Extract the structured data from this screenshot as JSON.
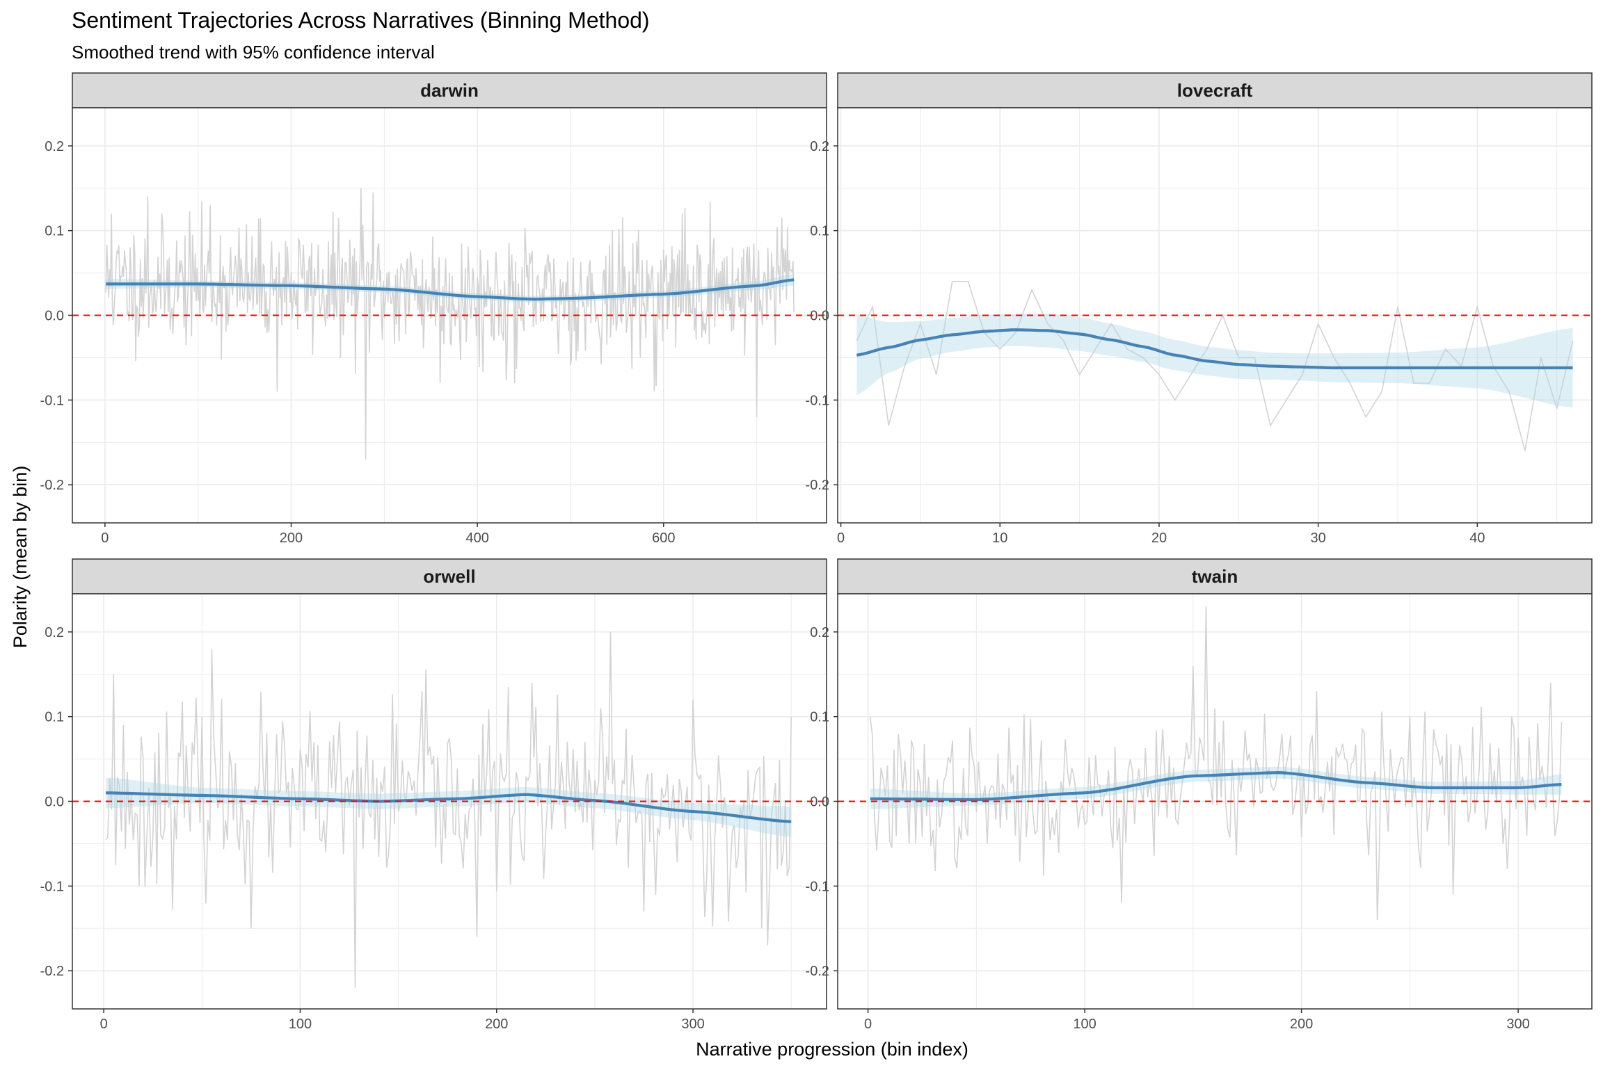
{
  "title": "Sentiment Trajectories Across Narratives (Binning Method)",
  "subtitle": "Smoothed trend with 95% confidence interval",
  "xlabel": "Narrative progression (bin index)",
  "ylabel": "Polarity (mean by bin)",
  "colors": {
    "raw_line": "#d3d3d3",
    "smooth_line": "#4682b4",
    "ci_band": "#add8e6",
    "zero_line": "#ff0000",
    "strip_fill": "#d9d9d9",
    "grid": "#ebebeb"
  },
  "chart_data": [
    {
      "type": "line",
      "facet": "darwin",
      "xlim": [
        -35,
        775
      ],
      "ylim": [
        -0.245,
        0.245
      ],
      "x_ticks": [
        0,
        200,
        400,
        600
      ],
      "y_ticks": [
        -0.2,
        -0.1,
        0.0,
        0.1,
        0.2
      ],
      "reference_line_y": 0,
      "raw": {
        "x_start": 1,
        "x_step": 1,
        "n": 740,
        "seed": 11,
        "sd": 0.036,
        "extremes": [
          [
            7,
            0.12
          ],
          [
            46,
            0.14
          ],
          [
            113,
            0.13
          ],
          [
            185,
            -0.09
          ],
          [
            275,
            0.15
          ],
          [
            280,
            -0.17
          ],
          [
            288,
            0.145
          ],
          [
            360,
            -0.08
          ],
          [
            440,
            -0.08
          ],
          [
            590,
            -0.09
          ],
          [
            620,
            0.12
          ],
          [
            700,
            0.12
          ],
          [
            700,
            -0.12
          ],
          [
            727,
            0.115
          ]
        ]
      },
      "smooth": {
        "x": [
          1,
          100,
          200,
          300,
          400,
          460,
          500,
          600,
          700,
          740
        ],
        "y": [
          0.037,
          0.037,
          0.035,
          0.031,
          0.022,
          0.019,
          0.02,
          0.025,
          0.035,
          0.042
        ],
        "ci_halfwidth": [
          0.006,
          0.004,
          0.004,
          0.004,
          0.004,
          0.004,
          0.004,
          0.004,
          0.005,
          0.007
        ]
      }
    },
    {
      "type": "line",
      "facet": "lovecraft",
      "xlim": [
        -0.2,
        47.2
      ],
      "ylim": [
        -0.245,
        0.245
      ],
      "x_ticks": [
        0,
        10,
        20,
        30,
        40
      ],
      "y_ticks": [
        -0.2,
        -0.1,
        0.0,
        0.1,
        0.2
      ],
      "reference_line_y": 0,
      "raw": {
        "x": [
          1,
          2,
          3,
          4,
          5,
          6,
          7,
          8,
          9,
          10,
          11,
          12,
          13,
          14,
          15,
          16,
          17,
          18,
          19,
          20,
          21,
          22,
          23,
          24,
          25,
          26,
          27,
          28,
          29,
          30,
          31,
          32,
          33,
          34,
          35,
          36,
          37,
          38,
          39,
          40,
          41,
          42,
          43,
          44,
          45,
          46
        ],
        "y": [
          -0.03,
          0.01,
          -0.13,
          -0.06,
          -0.01,
          -0.07,
          0.04,
          0.04,
          -0.02,
          -0.04,
          -0.02,
          0.03,
          -0.01,
          -0.03,
          -0.07,
          -0.04,
          -0.01,
          -0.04,
          -0.05,
          -0.07,
          -0.1,
          -0.07,
          -0.04,
          0.0,
          -0.05,
          -0.05,
          -0.13,
          -0.1,
          -0.07,
          -0.01,
          -0.05,
          -0.08,
          -0.12,
          -0.09,
          0.01,
          -0.08,
          -0.08,
          -0.04,
          -0.06,
          0.01,
          -0.06,
          -0.09,
          -0.16,
          -0.05,
          -0.11,
          -0.03
        ]
      },
      "smooth": {
        "x": [
          1,
          3,
          5,
          7,
          9,
          11,
          13,
          15,
          17,
          19,
          21,
          23,
          25,
          27,
          29,
          31,
          35,
          40,
          46
        ],
        "y": [
          -0.047,
          -0.038,
          -0.029,
          -0.023,
          -0.019,
          -0.017,
          -0.018,
          -0.022,
          -0.029,
          -0.037,
          -0.047,
          -0.054,
          -0.058,
          -0.06,
          -0.061,
          -0.062,
          -0.062,
          -0.062,
          -0.062
        ],
        "ci_halfwidth": [
          0.047,
          0.03,
          0.022,
          0.02,
          0.019,
          0.019,
          0.02,
          0.02,
          0.019,
          0.018,
          0.018,
          0.017,
          0.017,
          0.016,
          0.016,
          0.017,
          0.018,
          0.024,
          0.047
        ]
      }
    },
    {
      "type": "line",
      "facet": "orwell",
      "xlim": [
        -16,
        368
      ],
      "ylim": [
        -0.245,
        0.245
      ],
      "x_ticks": [
        0,
        100,
        200,
        300
      ],
      "y_ticks": [
        -0.2,
        -0.1,
        0.0,
        0.1,
        0.2
      ],
      "reference_line_y": 0,
      "raw": {
        "x_start": 1,
        "x_step": 1,
        "n": 350,
        "seed": 23,
        "sd": 0.05,
        "extremes": [
          [
            5,
            0.15
          ],
          [
            18,
            -0.1
          ],
          [
            55,
            0.18
          ],
          [
            75,
            -0.15
          ],
          [
            128,
            -0.22
          ],
          [
            162,
            0.13
          ],
          [
            190,
            -0.16
          ],
          [
            218,
            0.14
          ],
          [
            258,
            0.2
          ],
          [
            275,
            -0.13
          ],
          [
            300,
            0.12
          ],
          [
            335,
            -0.15
          ],
          [
            338,
            -0.17
          ],
          [
            350,
            0.1
          ]
        ]
      },
      "smooth": {
        "x": [
          1,
          50,
          100,
          140,
          180,
          215,
          250,
          300,
          350
        ],
        "y": [
          0.01,
          0.007,
          0.003,
          0.0,
          0.003,
          0.008,
          0.001,
          -0.012,
          -0.024
        ],
        "ci_halfwidth": [
          0.018,
          0.009,
          0.009,
          0.009,
          0.009,
          0.009,
          0.009,
          0.01,
          0.018
        ]
      }
    },
    {
      "type": "line",
      "facet": "twain",
      "xlim": [
        -14,
        334
      ],
      "ylim": [
        -0.245,
        0.245
      ],
      "x_ticks": [
        0,
        100,
        200,
        300
      ],
      "y_ticks": [
        -0.2,
        -0.1,
        0.0,
        0.1,
        0.2
      ],
      "reference_line_y": 0,
      "raw": {
        "x_start": 1,
        "x_step": 1,
        "n": 320,
        "seed": 37,
        "sd": 0.04,
        "extremes": [
          [
            1,
            0.1
          ],
          [
            117,
            -0.12
          ],
          [
            150,
            0.16
          ],
          [
            156,
            0.23
          ],
          [
            160,
            0.11
          ],
          [
            207,
            0.13
          ],
          [
            235,
            -0.14
          ],
          [
            250,
            0.1
          ],
          [
            270,
            -0.11
          ],
          [
            295,
            -0.08
          ],
          [
            315,
            0.14
          ]
        ]
      },
      "smooth": {
        "x": [
          1,
          50,
          100,
          150,
          190,
          230,
          260,
          300,
          320
        ],
        "y": [
          0.003,
          0.002,
          0.01,
          0.03,
          0.034,
          0.022,
          0.016,
          0.016,
          0.02
        ],
        "ci_halfwidth": [
          0.012,
          0.007,
          0.007,
          0.007,
          0.007,
          0.007,
          0.007,
          0.008,
          0.012
        ]
      }
    }
  ]
}
